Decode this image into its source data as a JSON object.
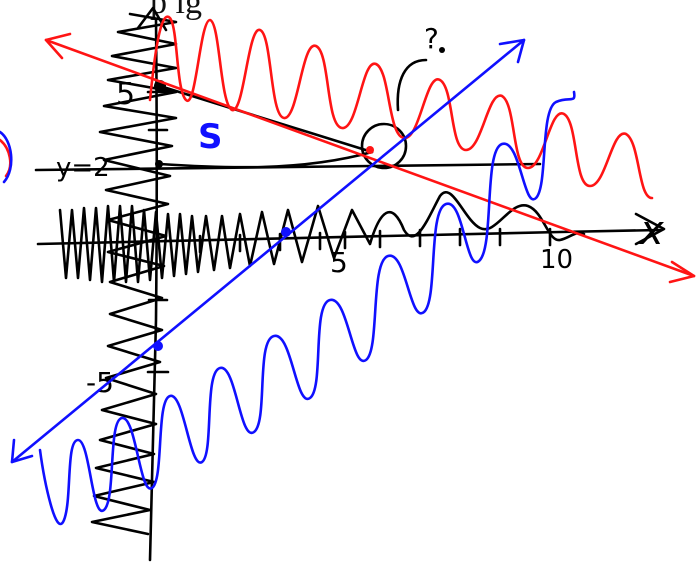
{
  "header": {
    "caption": "p                                        ig"
  },
  "labels": {
    "x_axis": "x",
    "y_tick_5": "5",
    "y_tick_neg5": "-5",
    "x_tick_5": "5",
    "x_tick_10": "10",
    "y_eq": "y=2",
    "s_label": "S",
    "question": "?"
  },
  "colors": {
    "ink": "#000000",
    "red": "#ff1414",
    "blue": "#1010ff"
  }
}
